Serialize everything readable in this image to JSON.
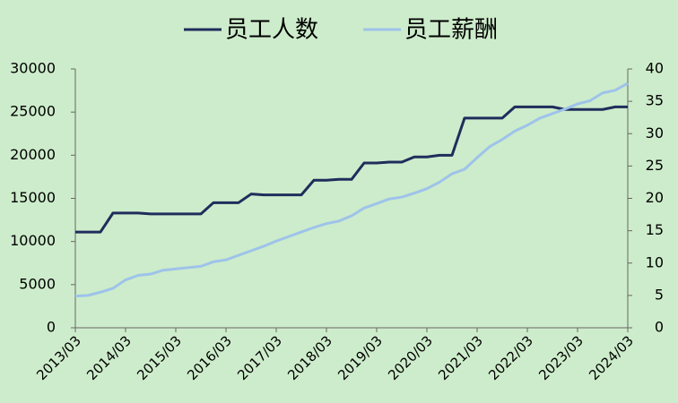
{
  "chart_data": {
    "type": "line",
    "categories": [
      "2013/03",
      null,
      null,
      null,
      "2014/03",
      null,
      null,
      null,
      "2015/03",
      null,
      null,
      null,
      "2016/03",
      null,
      null,
      null,
      "2017/03",
      null,
      null,
      null,
      "2018/03",
      null,
      null,
      null,
      "2019/03",
      null,
      null,
      null,
      "2020/03",
      null,
      null,
      null,
      "2021/03",
      null,
      null,
      null,
      "2022/03",
      null,
      null,
      null,
      "2023/03",
      null,
      null,
      null,
      "2024/03"
    ],
    "series": [
      {
        "name": "员工人数",
        "color": "#1f2d5c",
        "values": [
          11100,
          11100,
          11100,
          13300,
          13300,
          13300,
          13200,
          13200,
          13200,
          13200,
          13200,
          14500,
          14500,
          14500,
          15500,
          15400,
          15400,
          15400,
          15400,
          17100,
          17100,
          17200,
          17200,
          19100,
          19100,
          19200,
          19200,
          19800,
          19800,
          20000,
          20000,
          24300,
          24300,
          24300,
          24300,
          25600,
          25600,
          25600,
          25600,
          25300,
          25300,
          25300,
          25300,
          25600,
          25600
        ]
      },
      {
        "name": "员工薪酬",
        "color": "#9ec3ea",
        "axis": "y2",
        "values": [
          4.9,
          5.0,
          5.5,
          6.1,
          7.4,
          8.1,
          8.3,
          8.9,
          9.1,
          9.3,
          9.5,
          10.2,
          10.5,
          11.2,
          11.9,
          12.6,
          13.4,
          14.1,
          14.8,
          15.5,
          16.1,
          16.5,
          17.3,
          18.5,
          19.2,
          19.9,
          20.2,
          20.8,
          21.5,
          22.5,
          23.8,
          24.5,
          26.3,
          28.0,
          29.1,
          30.4,
          31.3,
          32.4,
          33.1,
          33.8,
          34.6,
          35.1,
          36.3,
          36.7,
          37.8
        ]
      }
    ],
    "ylim": [
      0,
      30000
    ],
    "yticks": [
      0,
      5000,
      10000,
      15000,
      20000,
      25000,
      30000
    ],
    "y2lim": [
      0,
      40
    ],
    "y2ticks": [
      0,
      5,
      10,
      15,
      20,
      25,
      30,
      35,
      40
    ],
    "legend": "top",
    "grid": false
  }
}
